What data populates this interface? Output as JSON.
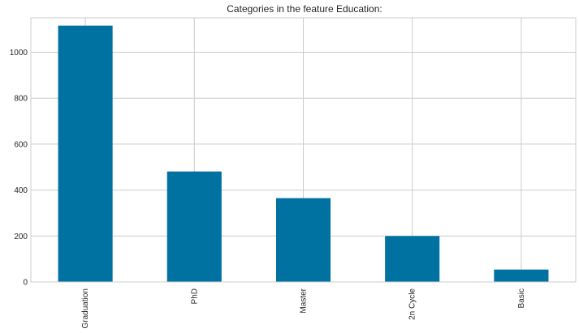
{
  "chart_data": {
    "type": "bar",
    "title": "Categories in the feature Education:",
    "xlabel": "",
    "ylabel": "",
    "categories": [
      "Graduation",
      "PhD",
      "Master",
      "2n Cycle",
      "Basic"
    ],
    "values": [
      1116,
      481,
      365,
      200,
      54
    ],
    "ylim": [
      0,
      1150
    ],
    "yticks": [
      0,
      200,
      400,
      600,
      800,
      1000
    ],
    "grid": true,
    "legend": "none",
    "colors": {
      "bar": "#0072a2",
      "grid": "#cccccc",
      "axes": "#cccccc",
      "text": "#262626"
    }
  }
}
